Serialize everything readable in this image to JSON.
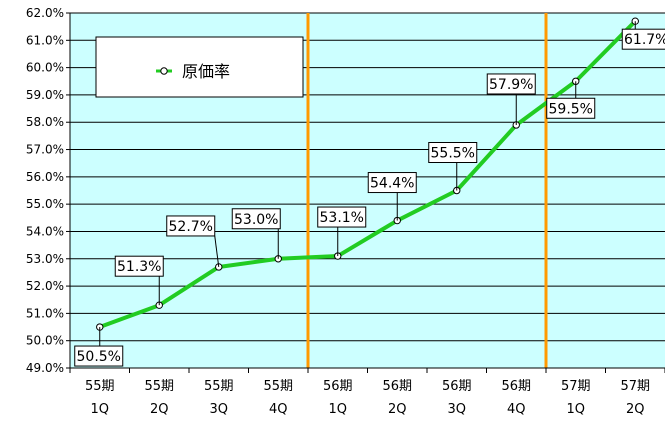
{
  "chart_data": {
    "type": "line",
    "title": "",
    "xlabel": "",
    "ylabel": "",
    "ylim": [
      49.0,
      62.0
    ],
    "yticks": [
      "49.0%",
      "50.0%",
      "51.0%",
      "52.0%",
      "53.0%",
      "54.0%",
      "55.0%",
      "56.0%",
      "57.0%",
      "58.0%",
      "59.0%",
      "60.0%",
      "61.0%",
      "62.0%"
    ],
    "categories": [
      [
        "55期",
        "1Q"
      ],
      [
        "55期",
        "2Q"
      ],
      [
        "55期",
        "3Q"
      ],
      [
        "55期",
        "4Q"
      ],
      [
        "56期",
        "1Q"
      ],
      [
        "56期",
        "2Q"
      ],
      [
        "56期",
        "3Q"
      ],
      [
        "56期",
        "4Q"
      ],
      [
        "57期",
        "1Q"
      ],
      [
        "57期",
        "2Q"
      ]
    ],
    "series": [
      {
        "name": "原価率",
        "color": "#22cc22",
        "values": [
          50.5,
          51.3,
          52.7,
          53.0,
          53.1,
          54.4,
          55.5,
          57.9,
          59.5,
          61.7
        ],
        "data_labels": [
          "50.5%",
          "51.3%",
          "52.7%",
          "53.0%",
          "53.1%",
          "54.4%",
          "55.5%",
          "57.9%",
          "59.5%",
          "61.7%"
        ]
      }
    ],
    "dividers_after_category": [
      4,
      8
    ],
    "divider_color": "#ff9900",
    "plot_background": "#ccffff",
    "grid": true,
    "legend_position": "top-left"
  }
}
